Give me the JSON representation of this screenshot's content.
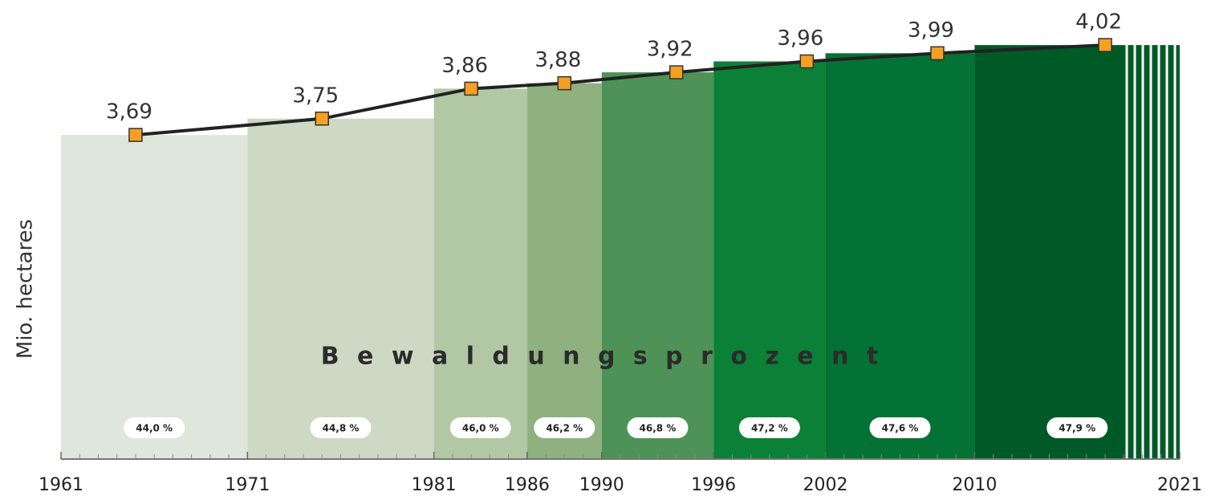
{
  "chart_data": {
    "type": "line",
    "ylabel": "Mio. hectares",
    "annotation": "B e w a l d u n g s p r o z e n t",
    "x": [
      1965,
      1975,
      1983,
      1988,
      1994,
      2001,
      2008,
      2017
    ],
    "series": [
      {
        "color": "#222222",
        "marker_color": "#f5a023",
        "values": [
          3.69,
          3.75,
          3.86,
          3.88,
          3.92,
          3.96,
          3.99,
          4.02
        ],
        "value_labels": [
          "3,69",
          "3,75",
          "3,86",
          "3,88",
          "3,92",
          "3,96",
          "3,99",
          "4,02"
        ]
      }
    ],
    "forest_share": {
      "values": [
        44.0,
        44.8,
        46.0,
        46.2,
        46.8,
        47.2,
        47.6,
        47.9
      ],
      "value_labels": [
        "44,0 %",
        "44,8 %",
        "46,0 %",
        "46,2 %",
        "46,8 %",
        "47,2 %",
        "47,6 %",
        "47,9 %"
      ],
      "colors": [
        "#dfe7dc",
        "#cdd9c4",
        "#b2c8a5",
        "#8fb07f",
        "#4f9257",
        "#0a8136",
        "#037234",
        "#005a26"
      ]
    },
    "xlim": [
      1961,
      2021
    ],
    "xticks": [
      1961,
      1971,
      1981,
      1986,
      1990,
      1996,
      2002,
      2010,
      2021
    ],
    "ylim": [
      2.5,
      4.1
    ]
  }
}
